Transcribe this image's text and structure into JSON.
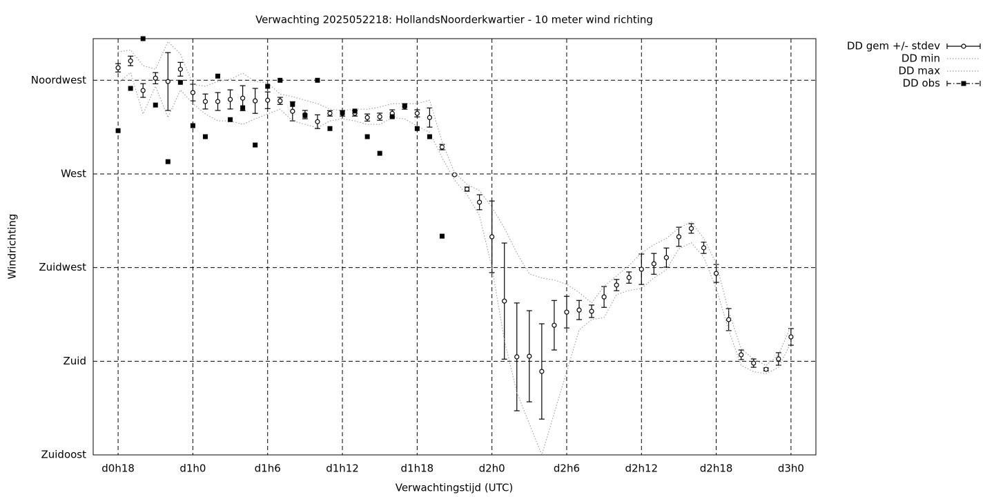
{
  "chart_data": {
    "type": "line",
    "title": "Verwachting 2025052218: HollandsNoorderkwartier - 10 meter wind richting",
    "x_label": "Verwachtingstijd (UTC)",
    "y_label": "Windrichting",
    "x": [
      18,
      19,
      20,
      21,
      22,
      23,
      24,
      25,
      26,
      27,
      28,
      29,
      30,
      31,
      32,
      33,
      34,
      35,
      36,
      37,
      38,
      39,
      40,
      41,
      42,
      43,
      44,
      45,
      46,
      47,
      48,
      49,
      50,
      51,
      52,
      53,
      54,
      55,
      56,
      57,
      58,
      59,
      60,
      61,
      62,
      63,
      64,
      65,
      66,
      67,
      68,
      69,
      70,
      71,
      72
    ],
    "xlim": [
      16,
      74
    ],
    "xticks": [
      {
        "value": 18,
        "label": "d0h18"
      },
      {
        "value": 24,
        "label": "d1h0"
      },
      {
        "value": 30,
        "label": "d1h6"
      },
      {
        "value": 36,
        "label": "d1h12"
      },
      {
        "value": 42,
        "label": "d1h18"
      },
      {
        "value": 48,
        "label": "d2h0"
      },
      {
        "value": 54,
        "label": "d2h6"
      },
      {
        "value": 60,
        "label": "d2h12"
      },
      {
        "value": 66,
        "label": "d2h18"
      },
      {
        "value": 72,
        "label": "d3h0"
      }
    ],
    "ylim": [
      135,
      335
    ],
    "yticks": [
      {
        "value": 135,
        "label": "Zuidoost"
      },
      {
        "value": 180,
        "label": "Zuid"
      },
      {
        "value": 225,
        "label": "Zuidwest"
      },
      {
        "value": 270,
        "label": "West"
      },
      {
        "value": 315,
        "label": "Noordwest"
      }
    ],
    "grid": true,
    "legend": "top-right-outside",
    "series": [
      {
        "name": "DD gem +/- stdev",
        "color": "#000000",
        "style": "errorbars",
        "values": [
          321.0,
          324.3,
          310.1,
          316.0,
          314.4,
          320.3,
          309.1,
          304.8,
          304.8,
          305.8,
          306.4,
          305.1,
          305.4,
          305.1,
          300.1,
          298.5,
          295.1,
          299.1,
          299.1,
          299.1,
          297.1,
          297.5,
          299.1,
          302.4,
          299.1,
          297.1,
          282.9,
          269.6,
          262.7,
          256.4,
          239.8,
          208.9,
          182.1,
          182.4,
          175.1,
          197.3,
          203.6,
          204.6,
          204.0,
          210.9,
          216.6,
          220.2,
          224.2,
          226.8,
          229.8,
          239.8,
          243.8,
          234.5,
          222.2,
          200.0,
          183.1,
          179.1,
          176.1,
          181.1,
          191.7
        ],
        "errors": [
          2.0,
          2.3,
          3.3,
          2.7,
          13.9,
          3.3,
          4.0,
          3.6,
          4.3,
          4.6,
          6.0,
          6.0,
          4.0,
          1.7,
          4.6,
          2.0,
          3.3,
          1.3,
          1.3,
          1.3,
          1.7,
          1.7,
          1.7,
          1.3,
          1.7,
          4.6,
          1.3,
          0.3,
          1.0,
          3.6,
          17.2,
          27.9,
          25.9,
          21.9,
          22.9,
          11.9,
          7.6,
          4.6,
          3.0,
          5.0,
          2.7,
          2.7,
          7.3,
          5.0,
          4.6,
          4.6,
          2.3,
          2.7,
          4.3,
          5.3,
          2.3,
          2.0,
          0.7,
          3.0,
          4.0
        ]
      },
      {
        "name": "DD min",
        "color": "#a0a0a0",
        "style": "dotted",
        "values": [
          313.7,
          318.7,
          298.8,
          312.1,
          297.1,
          310.4,
          303.8,
          298.8,
          295.5,
          295.5,
          293.8,
          296.5,
          298.8,
          301.1,
          295.5,
          293.8,
          292.2,
          295.5,
          296.5,
          295.5,
          293.8,
          293.8,
          297.1,
          296.5,
          293,
          290,
          277.9,
          267,
          260,
          250,
          225,
          190,
          165,
          150,
          135,
          155,
          175,
          195,
          200,
          201,
          212,
          214,
          215,
          220,
          224,
          234,
          237,
          230,
          215,
          195,
          178,
          175,
          174,
          177,
          189
        ]
      },
      {
        "name": "DD max",
        "color": "#a0a0a0",
        "style": "dotted",
        "values": [
          328.6,
          329.6,
          322.0,
          320.3,
          333.6,
          327.6,
          313.0,
          312.1,
          314.4,
          315.4,
          318.4,
          314.4,
          313.7,
          308.4,
          307.1,
          305.4,
          303.8,
          301.1,
          300.5,
          301.1,
          301.1,
          302.1,
          303.8,
          303.8,
          303.8,
          305.4,
          285.5,
          270.6,
          265,
          262,
          254,
          244,
          232,
          222,
          220,
          219,
          217,
          213,
          208,
          216,
          221,
          226,
          232,
          236,
          239,
          244,
          247,
          239,
          227,
          204,
          186,
          181,
          178,
          183,
          197
        ]
      },
      {
        "name": "DD obs",
        "color": "#000000",
        "style": "points",
        "values": [
          290.8,
          311.1,
          335.0,
          303.1,
          275.9,
          314,
          293.2,
          287.9,
          317,
          296.1,
          301.8,
          283.9,
          312.1,
          315,
          303.4,
          298.1,
          315,
          291.8,
          299.5,
          300.2,
          287.9,
          279.9,
          297.5,
          302.8,
          291.8,
          287.9,
          240.1,
          null,
          null,
          null,
          null,
          null,
          null,
          null,
          null,
          null,
          null,
          null,
          null,
          null,
          null,
          null,
          null,
          null,
          null,
          null,
          null,
          null,
          null,
          null,
          null,
          null,
          null,
          null,
          null
        ]
      }
    ]
  }
}
